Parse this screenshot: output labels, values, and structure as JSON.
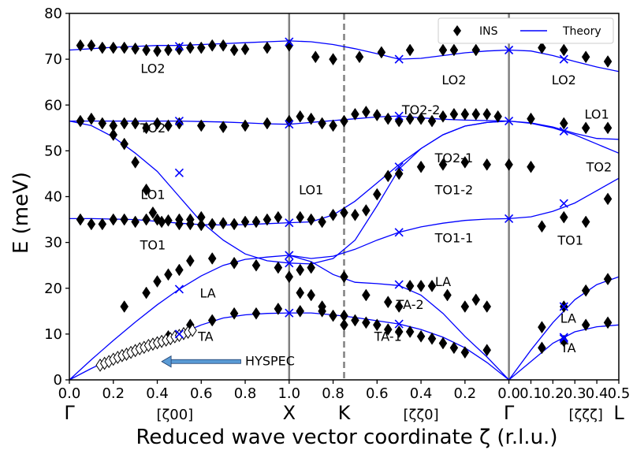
{
  "chart_data": {
    "type": "scatter",
    "xlabel": "Reduced wave vector coordinate ζ (r.l.u.)",
    "ylabel": "E (meV)",
    "ylim": [
      0,
      80
    ],
    "y_ticks": [
      0,
      10,
      20,
      30,
      40,
      50,
      60,
      70,
      80
    ],
    "x_tick_labels": [
      "0.0",
      "0.2",
      "0.4",
      "0.6",
      "0.8",
      "1.0",
      "0.8",
      "0.6",
      "0.4",
      "0.2",
      "0.0",
      "0.1",
      "0.2",
      "0.3",
      "0.4",
      "0.5"
    ],
    "x_tick_values": [
      0,
      0.2,
      0.4,
      0.6,
      0.8,
      1.0,
      1.2,
      1.4,
      1.6,
      1.8,
      2.0,
      2.1,
      2.2,
      2.3,
      2.4,
      2.5
    ],
    "xlim": [
      0,
      2.5
    ],
    "grid": false,
    "legend_position": "top-right",
    "legend": [
      {
        "label": "INS",
        "marker": "diamond",
        "color": "#000000"
      },
      {
        "label": "Theory",
        "marker": "line",
        "color": "#0000ff"
      }
    ],
    "high_symmetry_points": [
      {
        "label": "Γ",
        "x": 0.0
      },
      {
        "label": "X",
        "x": 1.0
      },
      {
        "label": "K",
        "x": 1.25
      },
      {
        "label": "Γ",
        "x": 2.0
      },
      {
        "label": "L",
        "x": 2.5
      }
    ],
    "direction_labels": [
      {
        "label": "[ζ00]",
        "x": 0.48
      },
      {
        "label": "[ζζ0]",
        "x": 1.6
      },
      {
        "label": "[ζζζ]",
        "x": 2.35
      }
    ],
    "vertical_lines": [
      {
        "x": 1.0,
        "style": "solid",
        "color": "#808080"
      },
      {
        "x": 1.25,
        "style": "dashed",
        "color": "#808080"
      },
      {
        "x": 2.0,
        "style": "solid",
        "color": "#808080"
      }
    ],
    "series": [
      {
        "type": "line",
        "color": "#0000ff",
        "x": [
          0,
          0.1,
          0.2,
          0.3,
          0.4,
          0.5,
          0.6,
          0.7,
          0.8,
          0.9,
          1.0,
          1.1,
          1.2,
          1.3,
          1.4,
          1.5,
          1.6,
          1.7,
          1.8,
          1.9,
          2.0,
          2.1,
          2.2,
          2.3,
          2.4,
          2.5
        ],
        "y": [
          72,
          72.3,
          72.6,
          72.8,
          73,
          73,
          73.2,
          73.4,
          73.6,
          73.8,
          74,
          73.8,
          73.2,
          72.3,
          71.2,
          70,
          70.2,
          70.8,
          71.4,
          71.8,
          72,
          71.8,
          70.8,
          69.5,
          68.3,
          67.3
        ]
      },
      {
        "type": "line",
        "color": "#0000ff",
        "x": [
          0,
          0.1,
          0.2,
          0.3,
          0.4,
          0.5,
          0.6,
          0.7,
          0.8,
          0.9,
          1.0,
          1.1,
          1.2,
          1.3,
          1.4,
          1.5,
          1.6,
          1.7,
          1.8,
          1.9,
          2.0,
          2.1,
          2.2,
          2.3,
          2.4,
          2.5
        ],
        "y": [
          56.5,
          56.5,
          56.5,
          56.5,
          56.5,
          56.5,
          56.4,
          56.3,
          56.1,
          55.9,
          55.8,
          56.2,
          56.6,
          57,
          57.4,
          57.6,
          57.2,
          56.9,
          56.7,
          56.6,
          56.5,
          56,
          55,
          53.5,
          51.5,
          49.5
        ]
      },
      {
        "type": "line",
        "color": "#0000ff",
        "x": [
          2.0,
          2.1,
          2.2,
          2.3,
          2.4,
          2.5
        ],
        "y": [
          56.5,
          56.1,
          55.2,
          53.8,
          52.7,
          52.5
        ]
      },
      {
        "type": "line",
        "color": "#0000ff",
        "x": [
          0,
          0.1,
          0.2,
          0.3,
          0.4,
          0.5,
          0.6,
          0.7,
          0.8,
          0.9,
          1.0
        ],
        "y": [
          56.5,
          55.5,
          53,
          49.5,
          45.5,
          40,
          34.5,
          30.5,
          27.5,
          26,
          25.5
        ]
      },
      {
        "type": "line",
        "color": "#0000ff",
        "x": [
          0,
          0.1,
          0.2,
          0.3,
          0.4,
          0.5,
          0.6,
          0.7,
          0.8,
          0.9,
          1.0
        ],
        "y": [
          35.2,
          35.2,
          35.1,
          35,
          34.6,
          34.2,
          33.9,
          33.8,
          33.9,
          34.1,
          34.3
        ]
      },
      {
        "type": "line",
        "color": "#0000ff",
        "x": [
          1.0,
          1.1,
          1.2,
          1.3,
          1.4,
          1.5,
          1.6,
          1.7,
          1.8,
          1.9,
          2.0
        ],
        "y": [
          34.3,
          34.5,
          36,
          39,
          43,
          47,
          50.5,
          53.5,
          55.4,
          56.2,
          56.5
        ]
      },
      {
        "type": "line",
        "color": "#0000ff",
        "x": [
          1.0,
          1.1,
          1.2,
          1.3,
          1.4,
          1.5,
          1.6,
          1.7,
          1.8,
          1.9,
          2.0
        ],
        "y": [
          25.5,
          25.3,
          26.5,
          30.5,
          38,
          46,
          50.5,
          53.5,
          55.4,
          56.2,
          56.5
        ]
      },
      {
        "type": "line",
        "color": "#0000ff",
        "x": [
          1.0,
          1.1,
          1.2,
          1.3,
          1.4,
          1.5,
          1.6,
          1.7,
          1.8,
          1.9,
          2.0
        ],
        "y": [
          27.2,
          26.5,
          27,
          28.5,
          30.5,
          32.2,
          33.4,
          34.2,
          34.8,
          35.1,
          35.2
        ]
      },
      {
        "type": "line",
        "color": "#0000ff",
        "x": [
          2.0,
          2.1,
          2.2,
          2.3,
          2.4,
          2.5
        ],
        "y": [
          35.2,
          35.6,
          36.8,
          38.6,
          41.3,
          44
        ]
      },
      {
        "type": "line",
        "color": "#0000ff",
        "x": [
          0,
          0.1,
          0.2,
          0.3,
          0.4,
          0.5,
          0.6,
          0.7,
          0.8,
          0.9,
          1.0,
          1.1,
          1.2,
          1.3,
          1.4,
          1.5,
          1.6,
          1.7,
          1.8,
          1.9,
          2.0
        ],
        "y": [
          0,
          4.4,
          8.6,
          12.6,
          16.4,
          19.8,
          22.7,
          25,
          26.3,
          26.8,
          27.2,
          25.8,
          23,
          21.3,
          21,
          20.6,
          18.5,
          14.5,
          9.5,
          5,
          0
        ]
      },
      {
        "type": "line",
        "color": "#0000ff",
        "x": [
          0,
          0.1,
          0.2,
          0.3,
          0.4,
          0.5,
          0.6,
          0.7,
          0.8,
          0.9,
          1.0,
          1.1,
          1.2,
          1.3,
          1.4,
          1.5,
          1.6,
          1.7,
          1.8,
          1.9,
          2.0
        ],
        "y": [
          0,
          2.5,
          4.8,
          7,
          8.8,
          10,
          12,
          13.5,
          14.2,
          14.5,
          14.6,
          14.6,
          14.2,
          13.6,
          12.9,
          12.2,
          11,
          9.3,
          7,
          3.8,
          0
        ]
      },
      {
        "type": "line",
        "color": "#0000ff",
        "x": [
          2.0,
          2.1,
          2.2,
          2.3,
          2.4,
          2.5
        ],
        "y": [
          0,
          6.5,
          12.5,
          17.5,
          20.8,
          22.5
        ]
      },
      {
        "type": "line",
        "color": "#0000ff",
        "x": [
          2.0,
          2.1,
          2.2,
          2.3,
          2.4,
          2.5
        ],
        "y": [
          0,
          4,
          8,
          10.5,
          11.6,
          12
        ]
      },
      {
        "type": "scatter",
        "name": "INS",
        "marker": "diamond",
        "color": "#000000",
        "x": [
          0.05,
          0.1,
          0.15,
          0.2,
          0.25,
          0.3,
          0.35,
          0.4,
          0.45,
          0.5,
          0.55,
          0.6,
          0.65,
          0.7,
          0.75,
          0.8,
          0.9,
          1.0,
          1.12,
          1.2,
          1.32,
          1.42,
          1.55,
          1.7,
          1.75,
          1.85,
          2.15,
          2.25,
          2.35,
          2.45,
          0.05,
          0.1,
          0.15,
          0.2,
          0.25,
          0.3,
          0.35,
          0.4,
          0.45,
          0.5,
          0.6,
          0.7,
          0.8,
          0.9,
          1.0,
          1.05,
          1.1,
          1.15,
          1.2,
          1.25,
          1.3,
          1.35,
          1.4,
          1.45,
          1.5,
          1.55,
          1.6,
          1.65,
          1.7,
          1.75,
          1.8,
          1.85,
          1.9,
          1.95,
          2.1,
          2.25,
          2.35,
          2.45,
          0.2,
          0.25,
          0.3,
          0.35,
          0.38,
          0.42,
          0.5,
          0.55,
          0.6,
          0.05,
          0.1,
          0.15,
          0.2,
          0.25,
          0.3,
          0.35,
          0.4,
          0.45,
          0.5,
          0.55,
          0.6,
          0.65,
          0.7,
          0.75,
          0.8,
          0.85,
          0.9,
          0.95,
          1.05,
          1.1,
          1.15,
          1.2,
          1.25,
          1.3,
          1.35,
          1.4,
          1.45,
          1.5,
          1.6,
          1.7,
          1.8,
          1.9,
          2.0,
          2.1,
          2.15,
          2.25,
          2.35,
          2.45,
          0.25,
          0.35,
          0.4,
          0.45,
          0.5,
          0.55,
          0.65,
          0.75,
          0.85,
          0.95,
          1.05,
          1.1,
          1.25,
          1.35,
          1.45,
          1.5,
          1.55,
          1.6,
          1.65,
          1.72,
          1.8,
          1.85,
          1.9,
          2.15,
          2.25,
          2.35,
          2.45,
          0.45,
          0.55,
          0.65,
          0.75,
          0.85,
          0.95,
          1.05,
          1.15,
          1.25,
          1.3,
          1.35,
          1.4,
          1.45,
          1.5,
          1.55,
          1.6,
          1.65,
          1.7,
          1.75,
          1.8,
          1.9,
          2.15,
          2.25,
          2.35,
          2.45,
          1.0,
          1.05,
          1.1,
          1.15,
          1.2,
          1.25
        ],
        "y": [
          73,
          73,
          72.5,
          72.5,
          72.5,
          72.3,
          72,
          71.8,
          72,
          72.2,
          72.5,
          72.5,
          73,
          73,
          72,
          72.2,
          72.5,
          73,
          70.5,
          70,
          70.5,
          71.5,
          72,
          72,
          72,
          72,
          72.5,
          72,
          70.5,
          69.5,
          56.5,
          57,
          56,
          55.5,
          56,
          56,
          55,
          56,
          55.5,
          56,
          55.5,
          55.2,
          55.5,
          56,
          56.5,
          57.5,
          57,
          56,
          55.5,
          56.5,
          58,
          58.5,
          57.8,
          57,
          56.5,
          57,
          57,
          56.5,
          57.5,
          58,
          58,
          58,
          58,
          57.5,
          57,
          56,
          55,
          55,
          53.5,
          51.5,
          47.5,
          41.5,
          36.5,
          34.5,
          35,
          35,
          35.5,
          35,
          34,
          34,
          35,
          35,
          34.5,
          35,
          35,
          34.8,
          34,
          34,
          33.8,
          34,
          34.2,
          34,
          34.5,
          34.5,
          35,
          35.5,
          35.5,
          35,
          34.5,
          36,
          36.5,
          36,
          37,
          40.5,
          44.5,
          45,
          46.5,
          47,
          47.5,
          47,
          47,
          46.5,
          33.5,
          35.5,
          34.5,
          39.5,
          16,
          19,
          21.5,
          23,
          24,
          26,
          26.5,
          25.5,
          25,
          24.5,
          24,
          24.5,
          22.5,
          18.5,
          17,
          16,
          20.5,
          20.5,
          20.5,
          18.5,
          16,
          17.5,
          16,
          11.5,
          16,
          19.5,
          22,
          9.5,
          12,
          13,
          14.5,
          14.5,
          15.5,
          15,
          15,
          14,
          13,
          12.5,
          12,
          11,
          10.5,
          10.5,
          9.5,
          9,
          8,
          7,
          6,
          6.5,
          7,
          8.5,
          12,
          12.5,
          22.5,
          19,
          18.5,
          16,
          14,
          12
        ]
      },
      {
        "type": "scatter",
        "name": "HYSPEC",
        "marker": "diamond-open",
        "color": "#000000",
        "x": [
          0.14,
          0.16,
          0.18,
          0.2,
          0.22,
          0.24,
          0.26,
          0.28,
          0.3,
          0.32,
          0.34,
          0.36,
          0.38,
          0.4,
          0.42,
          0.44,
          0.46,
          0.48,
          0.5,
          0.52,
          0.54,
          0.56
        ],
        "y": [
          3.2,
          3.6,
          4,
          4.5,
          4.9,
          5.3,
          5.6,
          6,
          6.4,
          6.8,
          7.1,
          7.5,
          7.8,
          8.1,
          8.4,
          8.7,
          9,
          9.4,
          9.7,
          10.1,
          10.4,
          10.8
        ]
      },
      {
        "type": "scatter",
        "name": "Theory markers",
        "marker": "x",
        "color": "#0000ff",
        "x": [
          0.5,
          1.0,
          1.5,
          2.0,
          2.25,
          0.5,
          1.0,
          1.5,
          2.0,
          2.25,
          0.5,
          1.0,
          1.5,
          2.25,
          1.0,
          1.5,
          2.0,
          2.25,
          0.5,
          1.0,
          1.5,
          2.25,
          0.5,
          1.0,
          1.5,
          2.25
        ],
        "y": [
          72.8,
          73.8,
          70,
          72,
          70,
          56.5,
          55.8,
          57.6,
          56.5,
          54.3,
          45.2,
          25.5,
          46.5,
          38.5,
          34.3,
          32.2,
          35.2,
          16,
          19.8,
          27.2,
          20.8,
          9.3,
          10,
          14.6,
          12.2,
          9
        ]
      }
    ],
    "annotations": [
      {
        "text": "LO2",
        "x": 0.38,
        "y": 67
      },
      {
        "text": "LO2",
        "x": 1.75,
        "y": 64.5
      },
      {
        "text": "LO2",
        "x": 2.25,
        "y": 64.5
      },
      {
        "text": "TO2-2",
        "x": 1.6,
        "y": 58
      },
      {
        "text": "LO1",
        "x": 2.4,
        "y": 57
      },
      {
        "text": "TO2",
        "x": 0.38,
        "y": 54
      },
      {
        "text": "TO2-1",
        "x": 1.75,
        "y": 47.5
      },
      {
        "text": "TO2",
        "x": 2.41,
        "y": 45.5
      },
      {
        "text": "LO1",
        "x": 0.38,
        "y": 39.5
      },
      {
        "text": "LO1",
        "x": 1.1,
        "y": 40.5
      },
      {
        "text": "TO1-2",
        "x": 1.75,
        "y": 40.5
      },
      {
        "text": "TO1",
        "x": 0.38,
        "y": 28.5
      },
      {
        "text": "TO1-1",
        "x": 1.75,
        "y": 30
      },
      {
        "text": "TO1",
        "x": 2.28,
        "y": 29.5
      },
      {
        "text": "LA",
        "x": 0.63,
        "y": 18
      },
      {
        "text": "LA",
        "x": 1.7,
        "y": 20.5
      },
      {
        "text": "LA",
        "x": 2.27,
        "y": 12.5
      },
      {
        "text": "TA-2",
        "x": 1.55,
        "y": 15.5
      },
      {
        "text": "TA",
        "x": 0.62,
        "y": 8.5
      },
      {
        "text": "TA-1",
        "x": 1.45,
        "y": 8.5
      },
      {
        "text": "TA",
        "x": 2.27,
        "y": 6
      },
      {
        "text": "HYSPEC",
        "x": 0.8,
        "y": 3.2
      }
    ],
    "arrow": {
      "from_x": 0.78,
      "from_y": 4.0,
      "to_x": 0.42,
      "to_y": 4.0,
      "color": "#5a9bd5"
    }
  }
}
